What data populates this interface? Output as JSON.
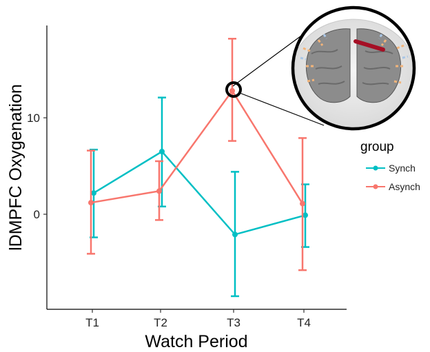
{
  "chart_data": {
    "type": "line",
    "xlabel": "Watch Period",
    "ylabel": "lDMPFC Oxygenation",
    "categories": [
      "T1",
      "T2",
      "T3",
      "T4"
    ],
    "y_ticks": [
      0,
      10
    ],
    "ylim": [
      -9.6,
      19.8
    ],
    "grid": false,
    "legend": {
      "title": "group",
      "position": "right"
    },
    "series": [
      {
        "name": "Synch",
        "color": "#00BFC4",
        "values": [
          2.2,
          6.5,
          -2.1,
          -0.1
        ],
        "error_low": [
          -2.4,
          0.8,
          -8.5,
          -3.4
        ],
        "error_high": [
          6.7,
          12.1,
          4.4,
          3.1
        ]
      },
      {
        "name": "Asynch",
        "color": "#F8766D",
        "values": [
          1.2,
          2.4,
          12.8,
          1.1
        ],
        "error_low": [
          -4.1,
          -0.6,
          7.6,
          -5.8
        ],
        "error_high": [
          6.6,
          5.5,
          18.2,
          7.9
        ]
      }
    ],
    "highlighted_point": {
      "series": "Asynch",
      "category": "T3"
    },
    "inset": {
      "content": "brain-image",
      "marker_color": "#A50F25"
    }
  }
}
